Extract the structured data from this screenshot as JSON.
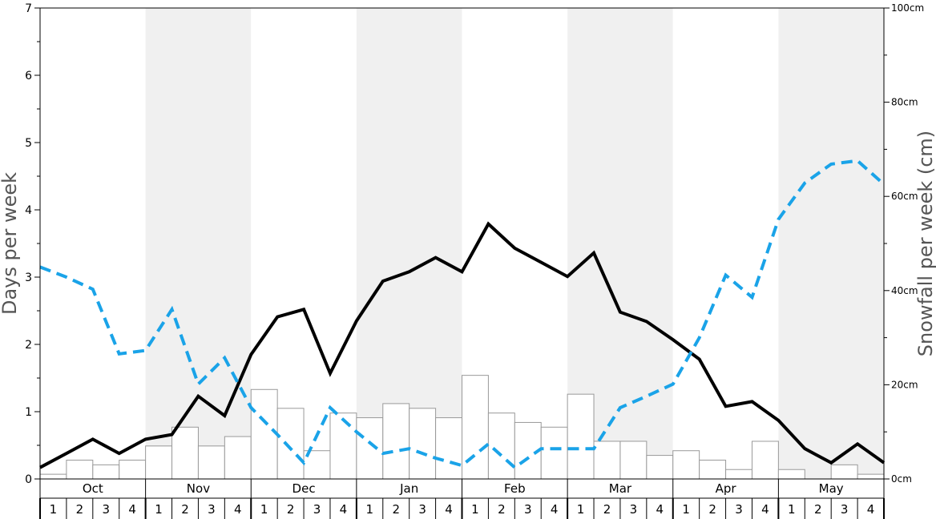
{
  "chart_data": {
    "type": "bar",
    "title": "",
    "ylabel_left": "Days per week",
    "ylabel_right": "Snowfall per week (cm)",
    "ylim_left": [
      0,
      7
    ],
    "yticks_left": [
      "0",
      "1",
      "2",
      "3",
      "4",
      "5",
      "6",
      "7"
    ],
    "ylim_right": [
      0,
      100
    ],
    "yticks_right": [
      "0cm",
      "20cm",
      "40cm",
      "60cm",
      "80cm",
      "100cm"
    ],
    "months": [
      "Oct",
      "Nov",
      "Dec",
      "Jan",
      "Feb",
      "Mar",
      "Apr",
      "May"
    ],
    "weeks": [
      "1",
      "2",
      "3",
      "4"
    ],
    "grid": false,
    "band_colors": [
      "#ffffff",
      "#f0f0f0"
    ],
    "series": [
      {
        "type": "bar",
        "axis": "right",
        "color": "#ffffff",
        "edge_color": "#999999",
        "values": [
          1,
          4,
          3,
          4,
          7,
          11,
          7,
          9,
          19,
          15,
          6,
          14,
          13,
          16,
          15,
          13,
          22,
          14,
          12,
          11,
          18,
          8,
          8,
          5,
          6,
          4,
          2,
          8,
          2,
          0,
          3,
          1
        ]
      },
      {
        "type": "line",
        "axis": "left",
        "color": "#000000",
        "style": "solid",
        "values": [
          0.17,
          0.38,
          0.59,
          0.38,
          0.59,
          0.66,
          1.23,
          0.94,
          1.85,
          2.41,
          2.52,
          1.57,
          2.35,
          2.94,
          3.08,
          3.29,
          3.08,
          3.79,
          3.43,
          3.22,
          3.01,
          3.36,
          2.48,
          2.34,
          2.07,
          1.78,
          1.08,
          1.15,
          0.87,
          0.45,
          0.24,
          0.52,
          0.24
        ]
      },
      {
        "type": "line",
        "axis": "left",
        "color": "#1aa3e8",
        "style": "dashed",
        "values": [
          3.15,
          3.0,
          2.82,
          1.86,
          1.91,
          2.52,
          1.41,
          1.8,
          1.06,
          0.66,
          0.24,
          1.06,
          0.7,
          0.38,
          0.45,
          0.31,
          0.2,
          0.52,
          0.17,
          0.45,
          0.45,
          0.45,
          1.06,
          1.23,
          1.41,
          2.1,
          3.03,
          2.7,
          3.86,
          4.4,
          4.68,
          4.73,
          4.38
        ]
      }
    ]
  }
}
